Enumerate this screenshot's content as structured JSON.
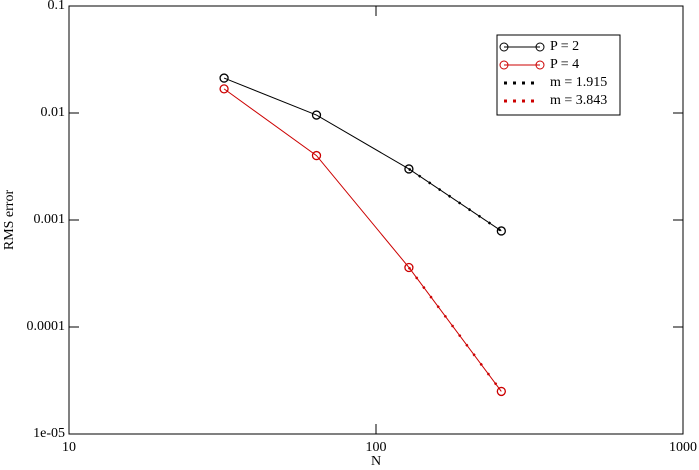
{
  "chart_data": {
    "type": "line",
    "x_label": "N",
    "y_label": "RMS error",
    "xscale": "log",
    "yscale": "log",
    "xlim": [
      10,
      1000
    ],
    "xticks": [
      10,
      100,
      1000
    ],
    "ylim": [
      1e-05,
      0.1
    ],
    "yticks": [
      {
        "value": 1e-05,
        "label": "1e-05"
      },
      0.0001,
      0.001,
      0.01,
      0.1
    ],
    "legend": "upper right",
    "series": [
      {
        "name": "P = 2",
        "color": "#000000",
        "line": "solid",
        "marker": "circle",
        "x": [
          32,
          64,
          128,
          256
        ],
        "values": [
          0.0212,
          0.00957,
          0.003,
          0.00079
        ]
      },
      {
        "name": "P = 4",
        "color": "#cc0000",
        "line": "solid",
        "marker": "circle",
        "x": [
          32,
          64,
          128,
          256
        ],
        "values": [
          0.0168,
          0.004,
          0.00036,
          2.5e-05
        ]
      },
      {
        "name": "m = 1.915",
        "color": "#000000",
        "line": "dotted",
        "marker": "none",
        "x": [
          128,
          256
        ],
        "values": [
          0.003,
          0.00079
        ]
      },
      {
        "name": "m = 3.843",
        "color": "#cc0000",
        "line": "dotted",
        "marker": "none",
        "x": [
          128,
          256
        ],
        "values": [
          0.00036,
          2.5e-05
        ]
      }
    ]
  }
}
